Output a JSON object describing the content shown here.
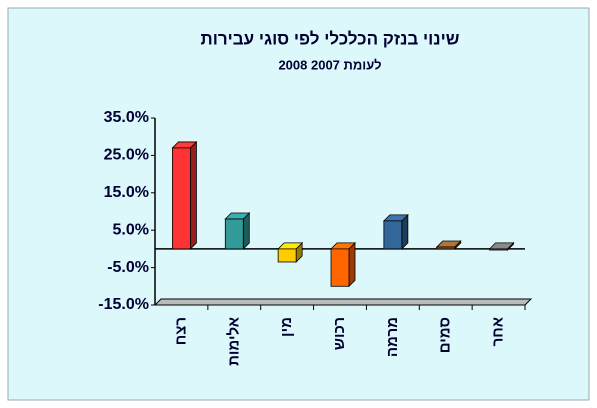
{
  "chart_data": {
    "type": "bar3d",
    "title": "שינוי בנזק הכלכלי לפי סוגי עבירות",
    "subtitle": "2008 לעומת 2007",
    "categories": [
      "רצח",
      "אלימות",
      "מין",
      "רכוש",
      "מרמה",
      "סמים",
      "אחר"
    ],
    "values": [
      27,
      8,
      -3.5,
      -10,
      7.5,
      0.5,
      -0.3
    ],
    "colors": [
      "#ff3333",
      "#339999",
      "#ffcc00",
      "#ff6600",
      "#336699",
      "#996633",
      "#777777"
    ],
    "ylim": [
      -15,
      35
    ],
    "yticks": [
      {
        "value": -15,
        "label": "-15.0%"
      },
      {
        "value": -5,
        "label": "-5.0%"
      },
      {
        "value": 5,
        "label": "5.0%"
      },
      {
        "value": 15,
        "label": "15.0%"
      },
      {
        "value": 25,
        "label": "25.0%"
      },
      {
        "value": 35,
        "label": "35.0%"
      }
    ]
  }
}
